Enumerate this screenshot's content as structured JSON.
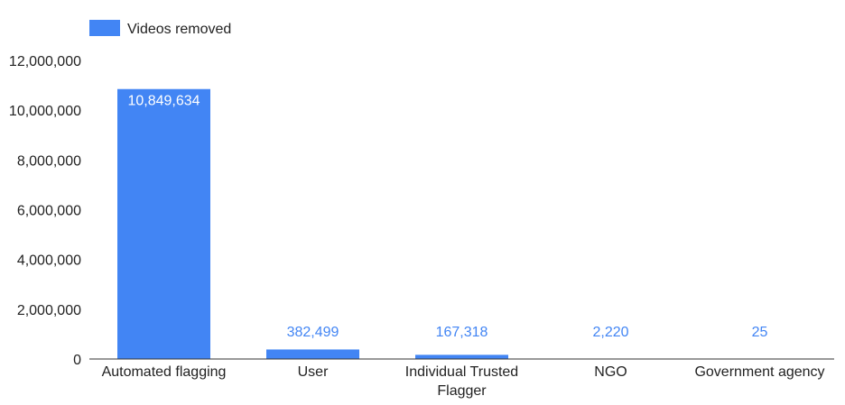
{
  "chart_data": {
    "type": "bar",
    "categories": [
      [
        "Automated flagging"
      ],
      [
        "User"
      ],
      [
        "Individual Trusted",
        "Flagger"
      ],
      [
        "NGO"
      ],
      [
        "Government agency"
      ]
    ],
    "series": [
      {
        "name": "Videos removed",
        "color": "#4285f4",
        "values": [
          10849634,
          382499,
          167318,
          2220,
          25
        ],
        "value_labels": [
          "10,849,634",
          "382,499",
          "167,318",
          "2,220",
          "25"
        ]
      }
    ],
    "y_ticks": [
      0,
      2000000,
      4000000,
      6000000,
      8000000,
      10000000,
      12000000
    ],
    "y_tick_labels": [
      "0",
      "2,000,000",
      "4,000,000",
      "6,000,000",
      "8,000,000",
      "10,000,000",
      "12,000,000"
    ],
    "ylim": [
      0,
      12000000
    ],
    "legend_position": "top-left",
    "grid": false
  }
}
